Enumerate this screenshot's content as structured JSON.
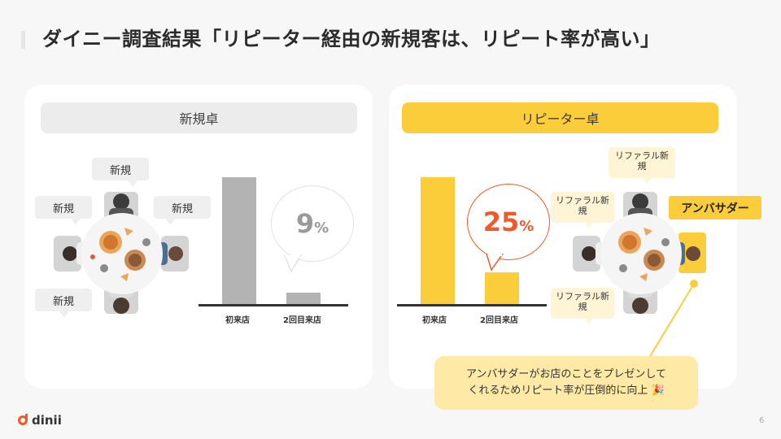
{
  "title": "ダイニー調査結果「リピーター経由の新規客は、リピート率が高い」",
  "colors": {
    "accent": "#fccd3a",
    "orange": "#f05a28",
    "grey_bar": "#b3b3b3"
  },
  "left_panel": {
    "header": "新規卓",
    "tags": [
      "新規",
      "新規",
      "新規",
      "新規"
    ],
    "bubble": {
      "value": "9",
      "unit": "%"
    }
  },
  "right_panel": {
    "header": "リピーター卓",
    "referral_tags": [
      "リファラル新規",
      "リファラル新規",
      "リファラル新規"
    ],
    "ambassador": "アンバサダー",
    "bubble": {
      "value": "25",
      "unit": "%"
    },
    "note_line1": "アンバサダーがお店のことをプレゼンして",
    "note_line2": "くれるためリピート率が圧倒的に向上 🎉"
  },
  "chart_data": [
    {
      "type": "bar",
      "categories": [
        "初来店",
        "2回目来店"
      ],
      "values": [
        100,
        9
      ],
      "color": "#b3b3b3"
    },
    {
      "type": "bar",
      "categories": [
        "初来店",
        "2回目来店"
      ],
      "values": [
        100,
        25
      ],
      "color": "#fccd3a"
    }
  ],
  "footer": {
    "logo": "dinii",
    "page": "6"
  }
}
